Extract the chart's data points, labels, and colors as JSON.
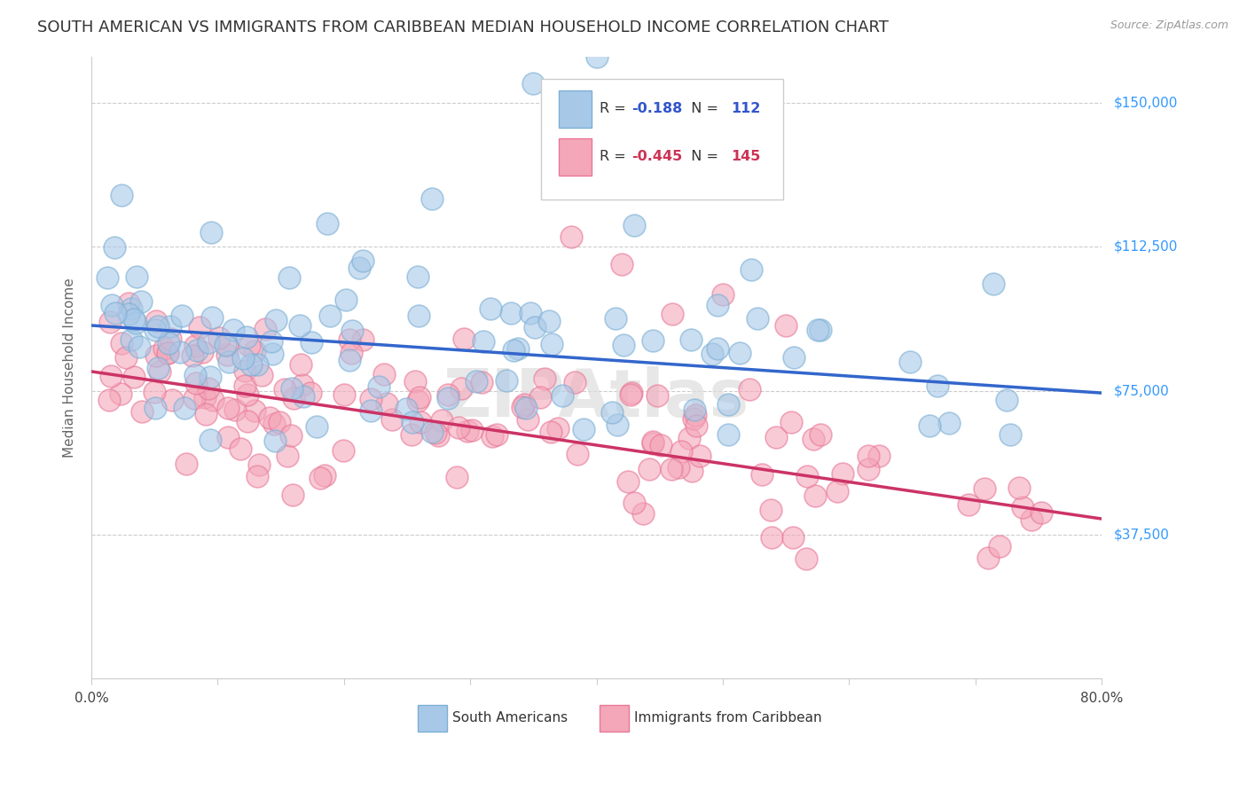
{
  "title": "SOUTH AMERICAN VS IMMIGRANTS FROM CARIBBEAN MEDIAN HOUSEHOLD INCOME CORRELATION CHART",
  "source": "Source: ZipAtlas.com",
  "ylabel": "Median Household Income",
  "yticks": [
    0,
    37500,
    75000,
    112500,
    150000
  ],
  "ytick_labels": [
    "",
    "$37,500",
    "$75,000",
    "$112,500",
    "$150,000"
  ],
  "xticks": [
    0.0,
    0.1,
    0.2,
    0.3,
    0.4,
    0.5,
    0.6,
    0.7,
    0.8
  ],
  "xlim": [
    0.0,
    0.8
  ],
  "ylim": [
    0,
    162000
  ],
  "blue_r": -0.188,
  "blue_n": 112,
  "pink_r": -0.445,
  "pink_n": 145,
  "blue_color": "#a8c8e8",
  "pink_color": "#f4a7b9",
  "blue_line_color": "#3366cc",
  "pink_line_color": "#cc3366",
  "blue_edge_color": "#7bafd4",
  "pink_edge_color": "#e87898",
  "legend_label_blue": "South Americans",
  "legend_label_pink": "Immigrants from Caribbean",
  "title_fontsize": 13,
  "axis_label_fontsize": 11,
  "tick_fontsize": 11,
  "background_color": "#ffffff",
  "grid_color": "#cccccc",
  "blue_intercept": 92000,
  "blue_slope": -22000,
  "pink_intercept": 80000,
  "pink_slope": -48000
}
